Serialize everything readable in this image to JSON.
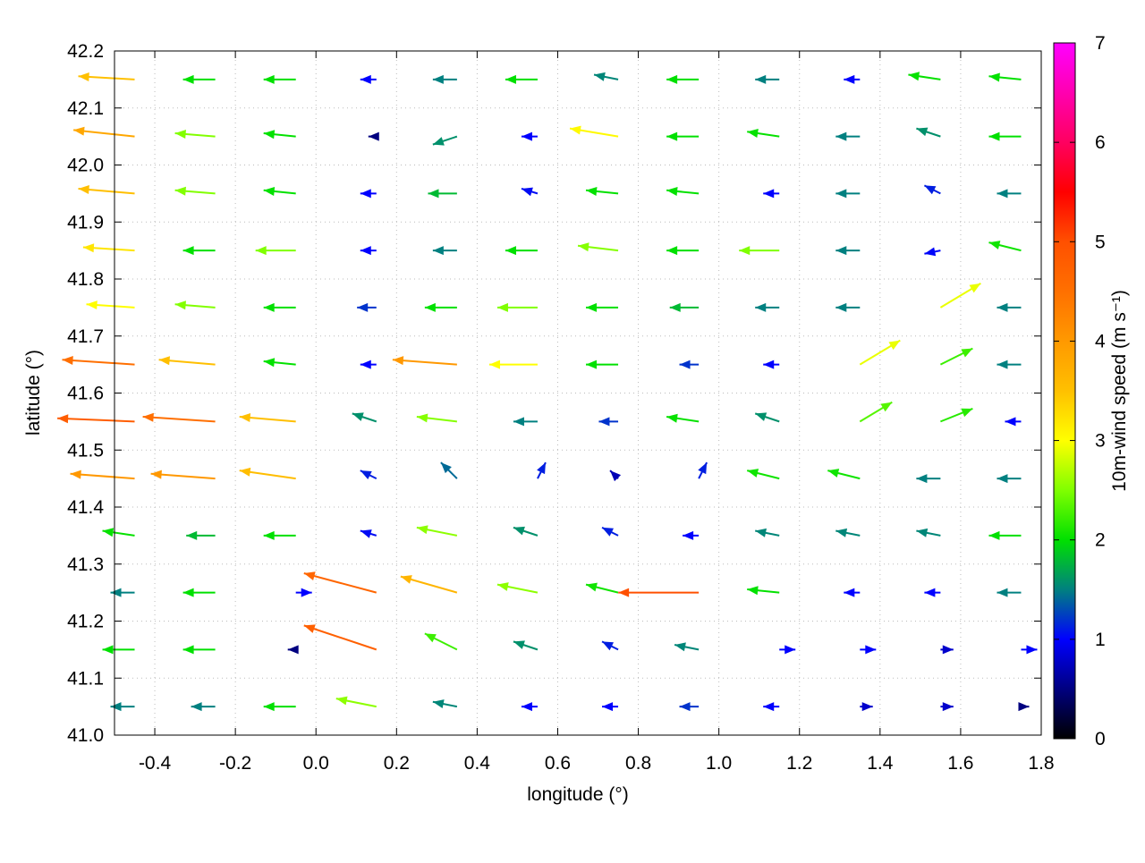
{
  "chart_data": {
    "type": "vector",
    "xlabel": "longitude (°)",
    "ylabel": "latitude (°)",
    "colorbar_label": "10m-wind speed (m s⁻¹)",
    "xlim": [
      -0.5,
      1.8
    ],
    "ylim": [
      41.0,
      42.2
    ],
    "xticks": [
      -0.4,
      -0.2,
      {
        "value": 0,
        "label": "0.0"
      },
      0.2,
      0.4,
      0.6,
      0.8,
      {
        "value": 1,
        "label": "1.0"
      },
      1.2,
      1.4,
      1.6,
      1.8
    ],
    "yticks": [
      {
        "value": 41,
        "label": "41.0"
      },
      41.1,
      41.2,
      41.3,
      41.4,
      41.5,
      41.6,
      41.7,
      41.8,
      41.9,
      {
        "value": 42,
        "label": "42.0"
      },
      42.1,
      42.2
    ],
    "clim": [
      0,
      7
    ],
    "cticks": [
      0,
      1,
      2,
      3,
      4,
      5,
      6,
      7
    ],
    "colormap": [
      "#000000",
      "#000080",
      "#0000ff",
      "#008080",
      "#00e000",
      "#80ff00",
      "#ffff00",
      "#ffc000",
      "#ff9900",
      "#ff7000",
      "#ff5000",
      "#ff0000",
      "#ff0060",
      "#ff00b0",
      "#ff00ff"
    ],
    "grid": true,
    "lons": [
      -0.45,
      -0.25,
      -0.05,
      0.15,
      0.35,
      0.55,
      0.75,
      0.95,
      1.15,
      1.35,
      1.55,
      1.75
    ],
    "lats": [
      42.15,
      42.05,
      41.95,
      41.85,
      41.75,
      41.65,
      41.55,
      41.45,
      41.35,
      41.25,
      41.15,
      41.05
    ],
    "u": [
      [
        -3.5,
        -2,
        -2,
        -1,
        -1.5,
        -2,
        -1.5,
        -2,
        -1.5,
        -1,
        -2,
        -2
      ],
      [
        -3.8,
        -2.5,
        -2,
        -0.5,
        -1.5,
        -1,
        -3,
        -2,
        -2,
        -1.5,
        -1.5,
        -2
      ],
      [
        -3.5,
        -2.5,
        -2,
        -1,
        -1.8,
        -1,
        -2,
        -2,
        -1,
        -1.5,
        -1,
        -1.5
      ],
      [
        -3.2,
        -2,
        -2.5,
        -1,
        -1.5,
        -2,
        -2.5,
        -2,
        -2.5,
        -1.5,
        -1,
        -2
      ],
      [
        -3,
        -2.5,
        -2,
        -1.2,
        -2,
        -2.5,
        -2,
        -1.8,
        -1.5,
        -1.5,
        2.5,
        -1.5
      ],
      [
        -4.5,
        -3.5,
        -2,
        -1,
        -4,
        -3,
        -2,
        -1.2,
        -1,
        2.5,
        2,
        -1.5
      ],
      [
        -4.8,
        -4.5,
        -3.5,
        -1.5,
        -2.5,
        -1.5,
        -1.2,
        -2,
        -1.5,
        2,
        2,
        -1
      ],
      [
        -4,
        -4,
        -3.5,
        -1,
        -1,
        0.5,
        -0.5,
        0.5,
        -2,
        -2,
        -1.5,
        -1.5
      ],
      [
        -2,
        -1.8,
        -2,
        -1,
        -2.5,
        -1.5,
        -1,
        -1,
        -1.5,
        -1.5,
        -1.5,
        -2
      ],
      [
        -1.5,
        -2,
        1,
        -4.5,
        -3.5,
        -2.5,
        -2,
        -5,
        -2,
        -1,
        -1,
        -1.5
      ],
      [
        -2,
        -2,
        -0.5,
        -4.5,
        -2,
        -1.5,
        -1,
        -1.5,
        1,
        1,
        0.8,
        1
      ],
      [
        -1.5,
        -1.5,
        -2,
        -2.5,
        -1.5,
        -1,
        -1,
        -1.2,
        -1,
        0.8,
        0.8,
        0.5
      ]
    ],
    "v": [
      [
        0.2,
        0,
        0,
        0,
        0,
        0,
        0.3,
        0,
        0,
        0,
        0.3,
        0.2
      ],
      [
        0.4,
        0.2,
        0.2,
        0,
        -0.5,
        0,
        0.5,
        0,
        0.3,
        0,
        0.5,
        0
      ],
      [
        0.3,
        0.2,
        0.2,
        0,
        0,
        0.3,
        0.2,
        0.2,
        0,
        0,
        0.5,
        0
      ],
      [
        0.2,
        0,
        0,
        0,
        0,
        0,
        0.3,
        0,
        0,
        0,
        -0.2,
        0.5
      ],
      [
        0.2,
        0.2,
        0,
        0,
        0,
        0,
        0,
        0,
        0,
        0,
        1.5,
        0
      ],
      [
        0.3,
        0.3,
        0.2,
        0,
        0.3,
        0,
        0,
        0,
        0,
        1.5,
        1,
        0
      ],
      [
        0.2,
        0.3,
        0.3,
        0.5,
        0.3,
        0,
        0,
        0.3,
        0.5,
        1.2,
        0.8,
        0
      ],
      [
        0.3,
        0.3,
        0.5,
        0.5,
        1,
        1,
        0.5,
        1,
        0.5,
        0.5,
        0,
        0
      ],
      [
        0.3,
        0,
        0,
        0.3,
        0.5,
        0.5,
        0.5,
        0,
        0.3,
        0.3,
        0.3,
        0
      ],
      [
        0,
        0,
        0,
        1.2,
        1,
        0.5,
        0.5,
        0,
        0.2,
        0,
        0,
        0
      ],
      [
        0,
        0,
        0,
        1.5,
        1,
        0.5,
        0.5,
        0.3,
        0,
        0,
        0,
        0
      ],
      [
        0,
        0,
        0,
        0.5,
        0.3,
        0,
        0,
        0,
        0,
        0,
        0,
        0
      ]
    ]
  }
}
